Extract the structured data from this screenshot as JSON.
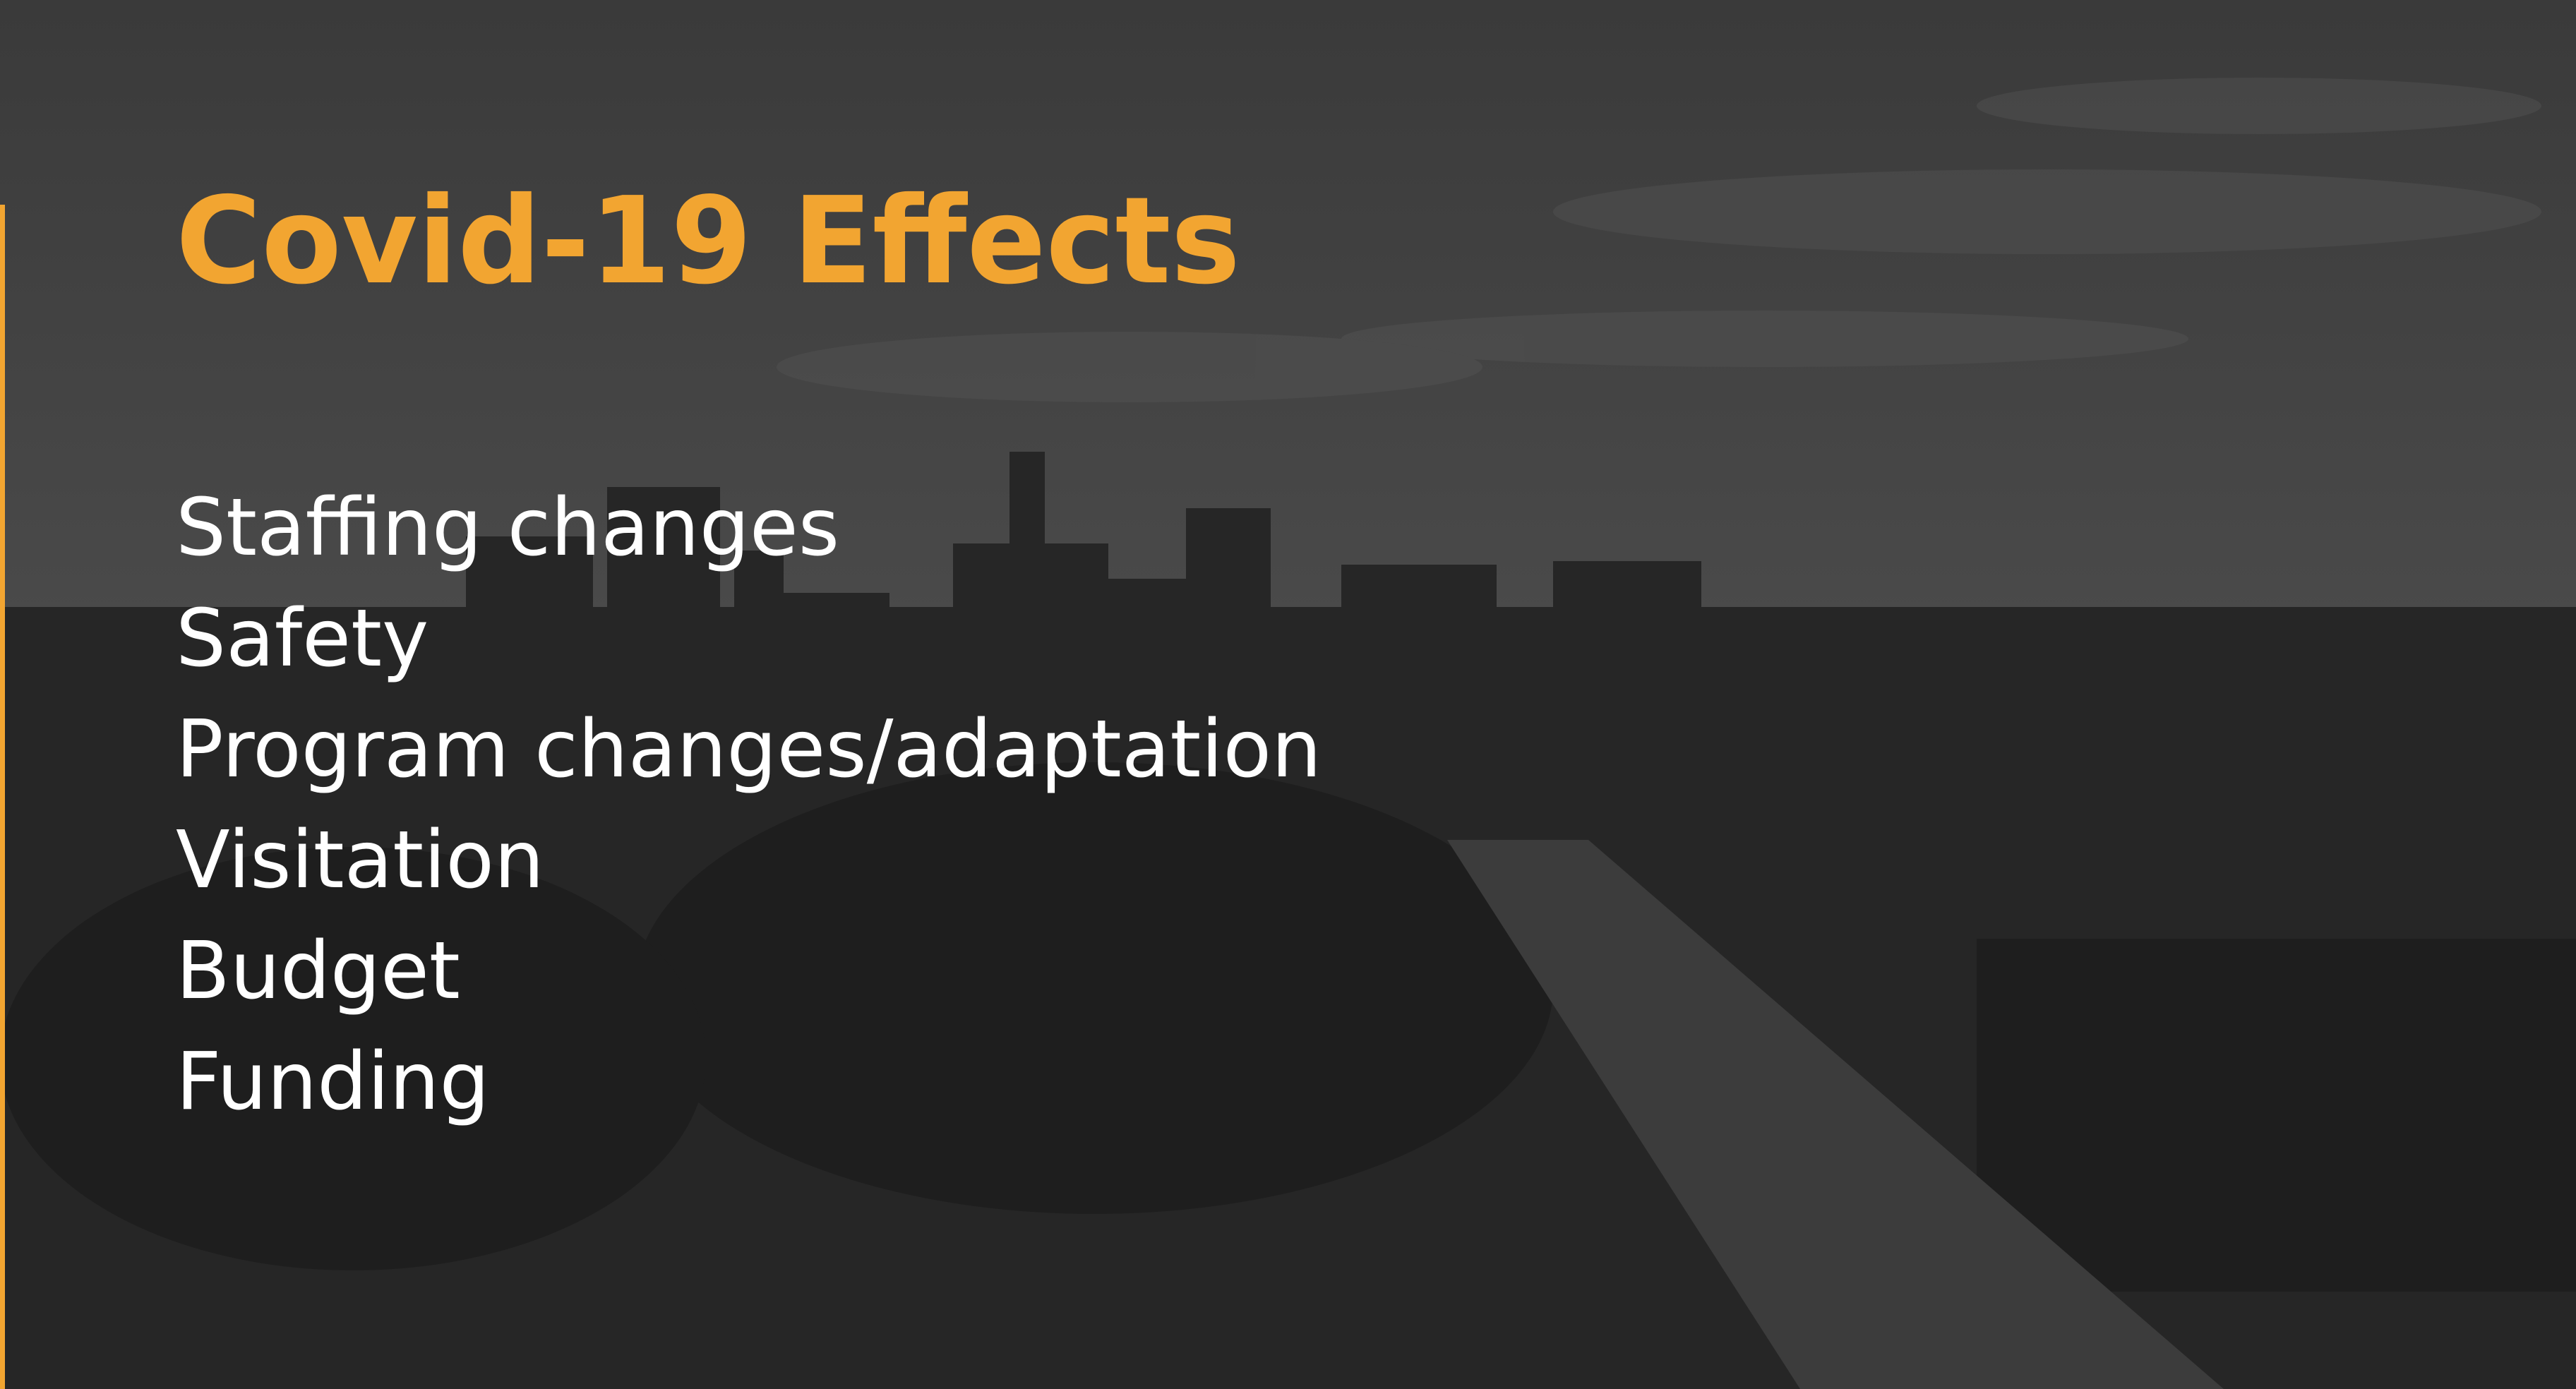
{
  "slide": {
    "title": "Covid-19 Effects",
    "items": [
      "Staffing changes",
      "Safety",
      "Program changes/adaptation",
      "Visitation",
      "Budget",
      "Funding"
    ]
  }
}
